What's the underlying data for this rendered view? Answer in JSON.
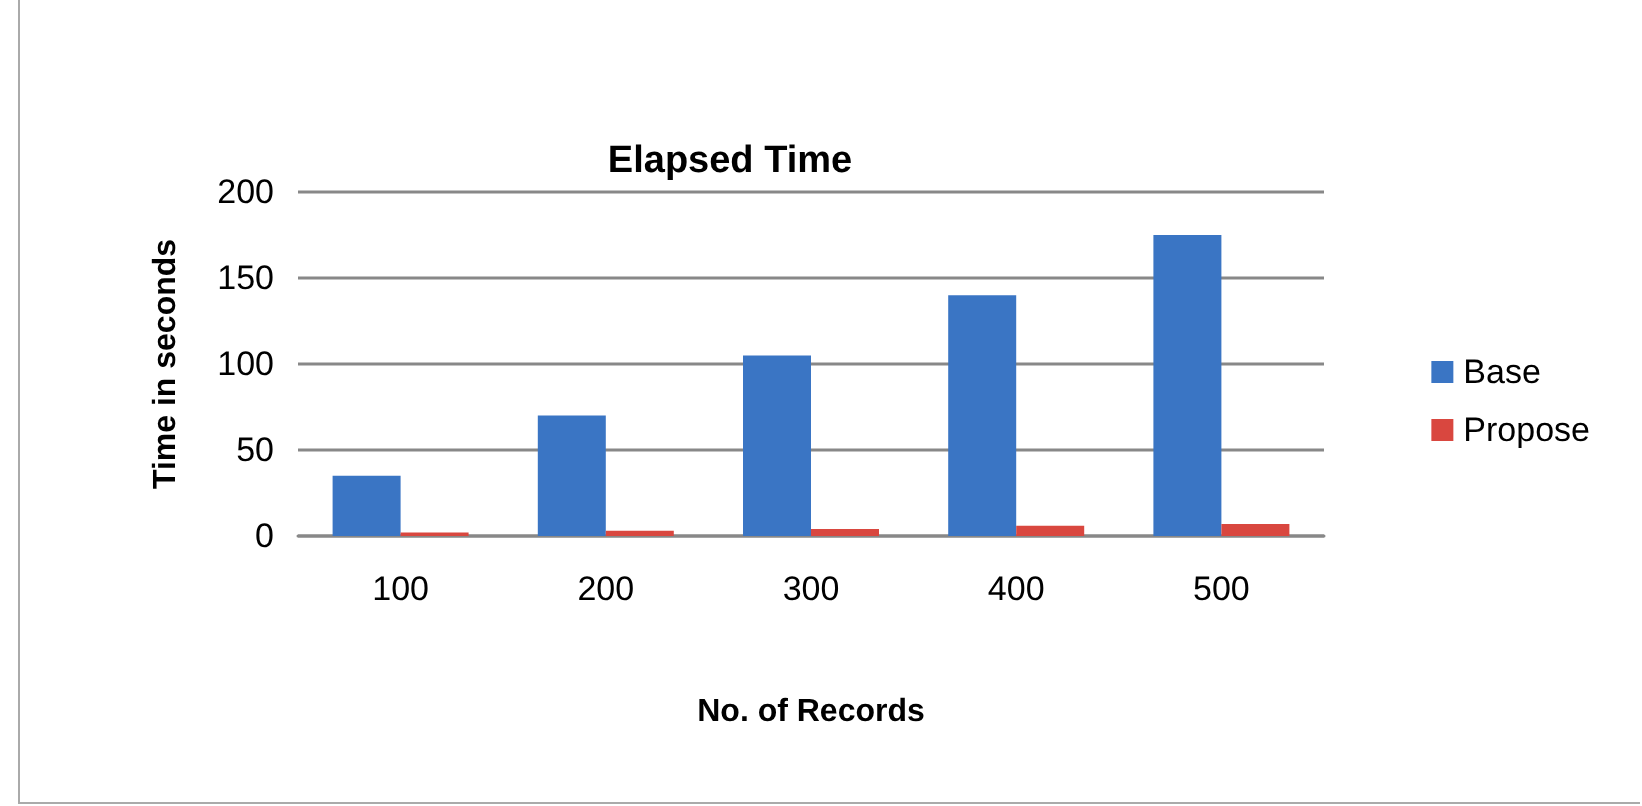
{
  "chart_data": {
    "type": "bar",
    "title": "Elapsed Time",
    "xlabel": "No. of Records",
    "ylabel": "Time in seconds",
    "categories": [
      "100",
      "200",
      "300",
      "400",
      "500"
    ],
    "series": [
      {
        "name": "Base",
        "color": "#3a75c4",
        "values": [
          35,
          70,
          105,
          140,
          175
        ]
      },
      {
        "name": "Propose",
        "color": "#d9473f",
        "values": [
          2,
          3,
          4,
          6,
          7
        ]
      }
    ],
    "ylim": [
      0,
      200
    ],
    "yticks": [
      0,
      50,
      100,
      150,
      200
    ],
    "grid": "y",
    "legend": "right"
  }
}
